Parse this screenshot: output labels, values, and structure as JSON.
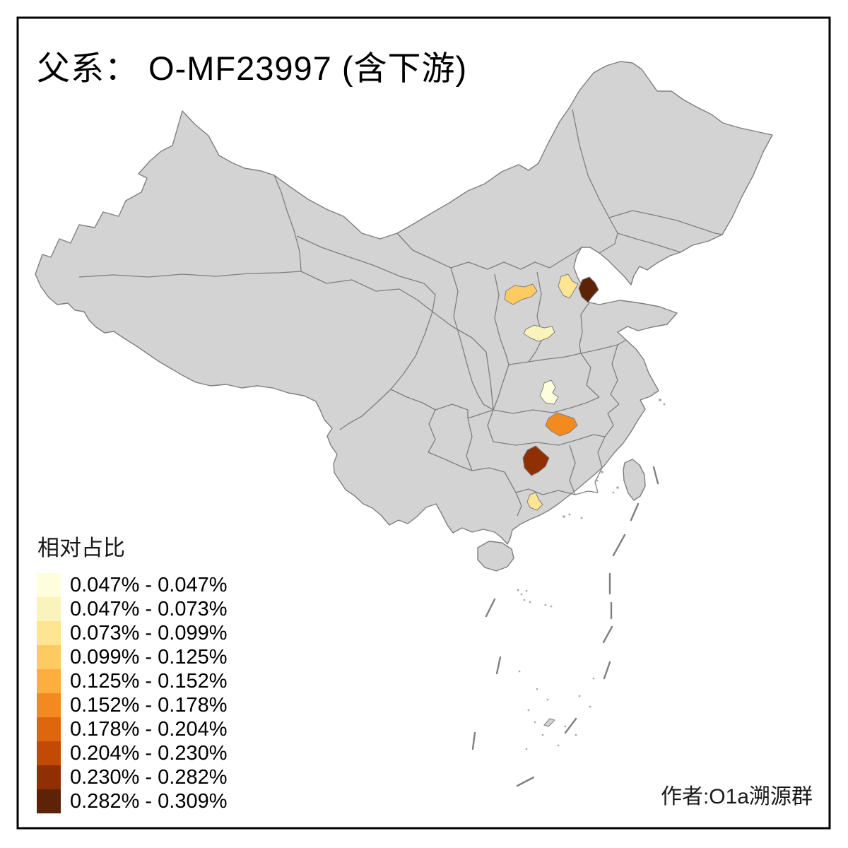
{
  "title": "父系： O-MF23997 (含下游)",
  "author_credit": "作者:O1a溯源群",
  "legend": {
    "title": "相对占比",
    "classes": [
      {
        "label": "0.047% - 0.047%",
        "color": "#FFFEDC"
      },
      {
        "label": "0.047% - 0.073%",
        "color": "#FBF3BC"
      },
      {
        "label": "0.073% - 0.099%",
        "color": "#FDE593"
      },
      {
        "label": "0.099% - 0.125%",
        "color": "#FDCB62"
      },
      {
        "label": "0.125% - 0.152%",
        "color": "#FCAE3E"
      },
      {
        "label": "0.152% - 0.178%",
        "color": "#F28A20"
      },
      {
        "label": "0.178% - 0.204%",
        "color": "#DD660F"
      },
      {
        "label": "0.204% - 0.230%",
        "color": "#C34A04"
      },
      {
        "label": "0.230% - 0.282%",
        "color": "#912F04"
      },
      {
        "label": "0.282% - 0.309%",
        "color": "#5C2306"
      }
    ]
  },
  "map": {
    "land_color": "#D3D3D3",
    "border_color": "#7F7F7F",
    "sea_color": "#FFFFFF",
    "frame_color": "#000000",
    "highlighted_regions": [
      {
        "id": "region-shanxi-central",
        "legend_class": 4,
        "range": "0.099% - 0.125%"
      },
      {
        "id": "region-hebei-central",
        "legend_class": 3,
        "range": "0.073% - 0.099%"
      },
      {
        "id": "region-bohai-coast",
        "legend_class": 10,
        "range": "0.282% - 0.309%"
      },
      {
        "id": "region-shanxi-south",
        "legend_class": 2,
        "range": "0.047% - 0.073%"
      },
      {
        "id": "region-henan-central",
        "legend_class": 1,
        "range": "0.047% - 0.047%"
      },
      {
        "id": "region-hubei-east",
        "legend_class": 6,
        "range": "0.152% - 0.178%"
      },
      {
        "id": "region-hunan-central",
        "legend_class": 9,
        "range": "0.230% - 0.282%"
      },
      {
        "id": "region-guangdong-north",
        "legend_class": 3,
        "range": "0.073% - 0.099%"
      }
    ]
  },
  "chart_data": {
    "type": "choropleth",
    "title": "父系： O-MF23997 (含下游)",
    "legend_title": "相对占比",
    "breaks_percent": [
      0.047,
      0.047,
      0.073,
      0.099,
      0.125,
      0.152,
      0.178,
      0.204,
      0.23,
      0.282,
      0.309
    ],
    "palette": [
      "#FFFEDC",
      "#FBF3BC",
      "#FDE593",
      "#FDCB62",
      "#FCAE3E",
      "#F28A20",
      "#DD660F",
      "#C34A04",
      "#912F04",
      "#5C2306"
    ],
    "regions": [
      {
        "id": "region-shanxi-central",
        "value_range": "0.099% - 0.125%"
      },
      {
        "id": "region-hebei-central",
        "value_range": "0.073% - 0.099%"
      },
      {
        "id": "region-bohai-coast",
        "value_range": "0.282% - 0.309%"
      },
      {
        "id": "region-shanxi-south",
        "value_range": "0.047% - 0.073%"
      },
      {
        "id": "region-henan-central",
        "value_range": "0.047% - 0.047%"
      },
      {
        "id": "region-hubei-east",
        "value_range": "0.152% - 0.178%"
      },
      {
        "id": "region-hunan-central",
        "value_range": "0.230% - 0.282%"
      },
      {
        "id": "region-guangdong-north",
        "value_range": "0.073% - 0.099%"
      }
    ]
  }
}
